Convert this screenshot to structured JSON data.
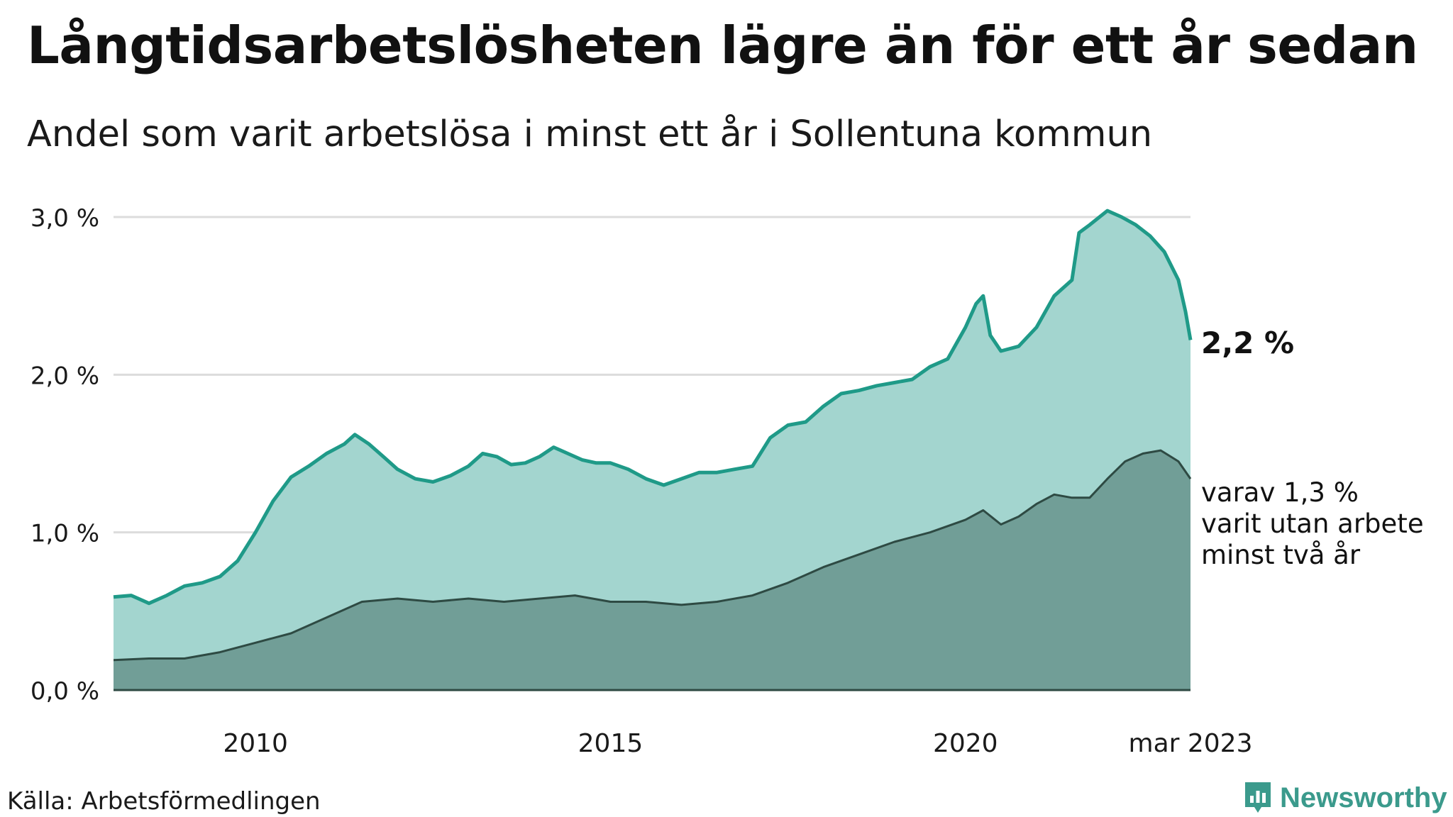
{
  "title": "Långtidsarbetslösheten lägre än för ett år sedan",
  "subtitle": "Andel som varit arbetslösa i minst ett år i Sollentuna kommun",
  "source": "Källa: Arbetsförmedlingen",
  "brand": "Newsworthy",
  "colors": {
    "total_line": "#1f9a88",
    "total_fill": "#a3d5cf",
    "sub_line": "#2e4a43",
    "sub_fill": "#719e97",
    "grid": "#dcdcdc",
    "brand": "#3b9a8c"
  },
  "chart_data": {
    "type": "area",
    "x_start": "2008-01",
    "x_end": "2023-03",
    "x_tick_labels": [
      {
        "x": 2010,
        "label": "2010"
      },
      {
        "x": 2015,
        "label": "2015"
      },
      {
        "x": 2020,
        "label": "2020"
      },
      {
        "x": 2023.17,
        "label": "mar 2023"
      }
    ],
    "y_ticks": [
      {
        "v": 0,
        "label": "0,0 %"
      },
      {
        "v": 1,
        "label": "1,0 %"
      },
      {
        "v": 2,
        "label": "2,0 %"
      },
      {
        "v": 3,
        "label": "3,0 %"
      }
    ],
    "ylim": [
      0,
      3.05
    ],
    "grid": true,
    "series": [
      {
        "key": "total",
        "label_lines": [
          "2,2 %"
        ],
        "points": [
          [
            2008.0,
            0.59
          ],
          [
            2008.25,
            0.6
          ],
          [
            2008.5,
            0.55
          ],
          [
            2008.75,
            0.6
          ],
          [
            2009.0,
            0.66
          ],
          [
            2009.25,
            0.68
          ],
          [
            2009.5,
            0.72
          ],
          [
            2009.75,
            0.82
          ],
          [
            2010.0,
            1.0
          ],
          [
            2010.25,
            1.2
          ],
          [
            2010.5,
            1.35
          ],
          [
            2010.75,
            1.42
          ],
          [
            2011.0,
            1.5
          ],
          [
            2011.25,
            1.56
          ],
          [
            2011.4,
            1.62
          ],
          [
            2011.6,
            1.56
          ],
          [
            2011.8,
            1.48
          ],
          [
            2012.0,
            1.4
          ],
          [
            2012.25,
            1.34
          ],
          [
            2012.5,
            1.32
          ],
          [
            2012.75,
            1.36
          ],
          [
            2013.0,
            1.42
          ],
          [
            2013.2,
            1.5
          ],
          [
            2013.4,
            1.48
          ],
          [
            2013.6,
            1.43
          ],
          [
            2013.8,
            1.44
          ],
          [
            2014.0,
            1.48
          ],
          [
            2014.2,
            1.54
          ],
          [
            2014.4,
            1.5
          ],
          [
            2014.6,
            1.46
          ],
          [
            2014.8,
            1.44
          ],
          [
            2015.0,
            1.44
          ],
          [
            2015.25,
            1.4
          ],
          [
            2015.5,
            1.34
          ],
          [
            2015.75,
            1.3
          ],
          [
            2016.0,
            1.34
          ],
          [
            2016.25,
            1.38
          ],
          [
            2016.5,
            1.38
          ],
          [
            2016.75,
            1.4
          ],
          [
            2017.0,
            1.42
          ],
          [
            2017.25,
            1.6
          ],
          [
            2017.5,
            1.68
          ],
          [
            2017.75,
            1.7
          ],
          [
            2018.0,
            1.8
          ],
          [
            2018.25,
            1.88
          ],
          [
            2018.5,
            1.9
          ],
          [
            2018.75,
            1.93
          ],
          [
            2019.0,
            1.95
          ],
          [
            2019.25,
            1.97
          ],
          [
            2019.5,
            2.05
          ],
          [
            2019.75,
            2.1
          ],
          [
            2020.0,
            2.3
          ],
          [
            2020.15,
            2.45
          ],
          [
            2020.25,
            2.5
          ],
          [
            2020.35,
            2.25
          ],
          [
            2020.5,
            2.15
          ],
          [
            2020.75,
            2.18
          ],
          [
            2021.0,
            2.3
          ],
          [
            2021.25,
            2.5
          ],
          [
            2021.5,
            2.6
          ],
          [
            2021.6,
            2.9
          ],
          [
            2021.75,
            2.95
          ],
          [
            2022.0,
            3.04
          ],
          [
            2022.2,
            3.0
          ],
          [
            2022.4,
            2.95
          ],
          [
            2022.6,
            2.88
          ],
          [
            2022.8,
            2.78
          ],
          [
            2023.0,
            2.6
          ],
          [
            2023.1,
            2.4
          ],
          [
            2023.17,
            2.22
          ]
        ]
      },
      {
        "key": "two_years",
        "label_lines": [
          "varav 1,3 %",
          "varit utan arbete",
          "minst två år"
        ],
        "points": [
          [
            2008.0,
            0.19
          ],
          [
            2008.5,
            0.2
          ],
          [
            2009.0,
            0.2
          ],
          [
            2009.5,
            0.24
          ],
          [
            2010.0,
            0.3
          ],
          [
            2010.5,
            0.36
          ],
          [
            2011.0,
            0.46
          ],
          [
            2011.5,
            0.56
          ],
          [
            2012.0,
            0.58
          ],
          [
            2012.5,
            0.56
          ],
          [
            2013.0,
            0.58
          ],
          [
            2013.5,
            0.56
          ],
          [
            2014.0,
            0.58
          ],
          [
            2014.5,
            0.6
          ],
          [
            2015.0,
            0.56
          ],
          [
            2015.5,
            0.56
          ],
          [
            2016.0,
            0.54
          ],
          [
            2016.5,
            0.56
          ],
          [
            2017.0,
            0.6
          ],
          [
            2017.5,
            0.68
          ],
          [
            2018.0,
            0.78
          ],
          [
            2018.5,
            0.86
          ],
          [
            2019.0,
            0.94
          ],
          [
            2019.5,
            1.0
          ],
          [
            2020.0,
            1.08
          ],
          [
            2020.25,
            1.14
          ],
          [
            2020.5,
            1.05
          ],
          [
            2020.75,
            1.1
          ],
          [
            2021.0,
            1.18
          ],
          [
            2021.25,
            1.24
          ],
          [
            2021.5,
            1.22
          ],
          [
            2021.75,
            1.22
          ],
          [
            2022.0,
            1.34
          ],
          [
            2022.25,
            1.45
          ],
          [
            2022.5,
            1.5
          ],
          [
            2022.75,
            1.52
          ],
          [
            2023.0,
            1.45
          ],
          [
            2023.17,
            1.34
          ]
        ]
      }
    ]
  }
}
